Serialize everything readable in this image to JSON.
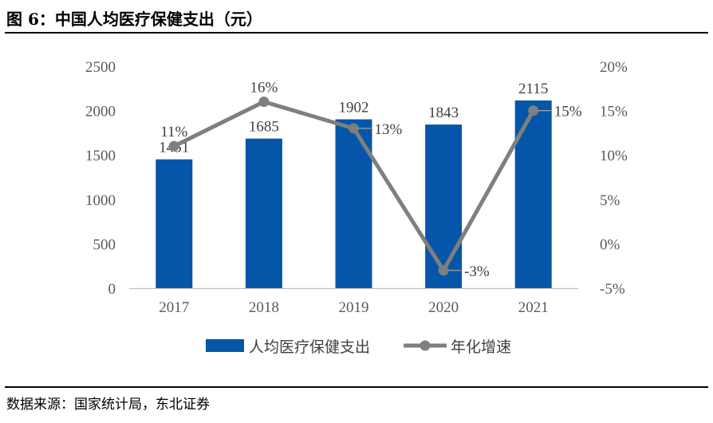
{
  "title": "图 6：中国人均医疗保健支出（元）",
  "source": "数据来源：国家统计局，东北证券",
  "colors": {
    "bar": "#0556A8",
    "line": "#7F7F7F",
    "axis": "#BFBFBF"
  },
  "chart_data": {
    "type": "bar",
    "categories": [
      "2017",
      "2018",
      "2019",
      "2020",
      "2021"
    ],
    "series": [
      {
        "name": "人均医疗保健支出",
        "type": "bar",
        "axis": "left",
        "values": [
          1451,
          1685,
          1902,
          1843,
          2115
        ],
        "labels": [
          "1451",
          "1685",
          "1902",
          "1843",
          "2115"
        ]
      },
      {
        "name": "年化增速",
        "type": "line",
        "axis": "right",
        "values": [
          11,
          16,
          13,
          -3,
          15
        ],
        "labels": [
          "11%",
          "16%",
          "13%",
          "-3%",
          "15%"
        ]
      }
    ],
    "y_left": {
      "min": 0,
      "max": 2500,
      "ticks": [
        "0",
        "500",
        "1000",
        "1500",
        "2000",
        "2500"
      ]
    },
    "y_right": {
      "min": -5,
      "max": 20,
      "ticks": [
        "-5%",
        "0%",
        "5%",
        "10%",
        "15%",
        "20%"
      ]
    },
    "legend": "bottom",
    "grid": false
  }
}
